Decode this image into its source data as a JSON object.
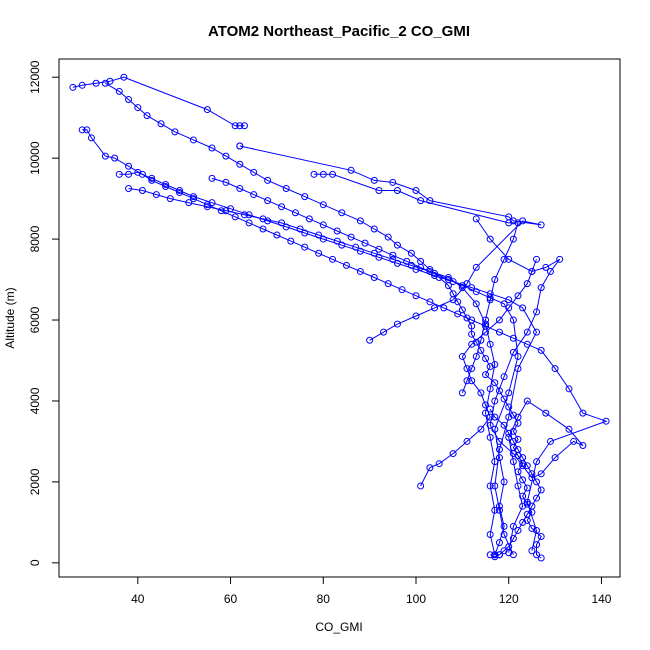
{
  "chart_data": {
    "type": "scatter",
    "title": "ATOM2 Northeast_Pacific_2 CO_GMI",
    "xlabel": "CO_GMI",
    "ylabel": "Altitude (m)",
    "xlim": [
      23,
      144
    ],
    "ylim": [
      -350,
      12450
    ],
    "x_ticks": [
      40,
      60,
      80,
      100,
      120,
      140
    ],
    "y_ticks": [
      0,
      2000,
      4000,
      6000,
      8000,
      10000,
      12000
    ],
    "color": "#0000ff",
    "grid": false,
    "legend": "none",
    "series": [
      {
        "connected": true,
        "marker": "open-circle",
        "x": [
          127,
          126,
          126,
          127,
          125,
          124,
          125,
          124,
          123,
          124,
          123,
          122,
          123,
          122,
          121,
          122,
          121,
          122,
          121,
          120,
          119,
          118,
          117,
          115,
          116,
          115,
          114,
          113,
          112,
          112,
          111,
          110,
          109,
          108,
          107,
          105,
          103,
          101,
          99,
          96,
          94,
          91,
          88,
          84,
          80,
          76,
          72,
          68,
          65,
          62,
          59,
          56,
          52,
          48,
          45,
          42,
          40,
          38,
          36,
          33
        ],
        "y": [
          120,
          200,
          450,
          650,
          850,
          1050,
          1250,
          1450,
          1650,
          1850,
          2050,
          2250,
          2450,
          2650,
          2850,
          3050,
          3250,
          3450,
          3650,
          3850,
          4050,
          4250,
          4450,
          4650,
          4850,
          5050,
          5250,
          5450,
          5650,
          5850,
          6050,
          6250,
          6450,
          6650,
          6850,
          7050,
          7250,
          7450,
          7650,
          7850,
          8050,
          8250,
          8450,
          8650,
          8850,
          9050,
          9250,
          9450,
          9650,
          9850,
          10050,
          10250,
          10450,
          10650,
          10850,
          11050,
          11250,
          11450,
          11650,
          11850
        ]
      },
      {
        "connected": true,
        "marker": "open-circle",
        "x": [
          26,
          28,
          31,
          34,
          37,
          55,
          61,
          62,
          63
        ],
        "y": [
          11750,
          11800,
          11850,
          11900,
          12000,
          11200,
          10800,
          10800,
          10800
        ]
      },
      {
        "connected": true,
        "marker": "open-circle",
        "x": [
          62,
          62,
          86,
          91,
          95,
          100,
          103,
          120,
          121,
          127,
          123,
          113,
          111,
          108,
          104,
          100,
          96,
          93,
          90
        ],
        "y": [
          10300,
          10300,
          9700,
          9450,
          9400,
          9200,
          8950,
          8550,
          8450,
          8350,
          8450,
          7300,
          6900,
          6500,
          6300,
          6100,
          5900,
          5700,
          5500
        ]
      },
      {
        "connected": true,
        "marker": "open-circle",
        "x": [
          28,
          29,
          30,
          33,
          35,
          38,
          41,
          43,
          46,
          49,
          52,
          55,
          58,
          61,
          64,
          67,
          70,
          73,
          76,
          79,
          82,
          85,
          88,
          91,
          94,
          97,
          100,
          103,
          106,
          109,
          112,
          115,
          118,
          121,
          124,
          127,
          130,
          133,
          136,
          141,
          129,
          126,
          124,
          126,
          125
        ],
        "y": [
          10700,
          10700,
          10500,
          10050,
          10000,
          9800,
          9600,
          9450,
          9300,
          9150,
          9000,
          8850,
          8700,
          8550,
          8400,
          8250,
          8100,
          7950,
          7800,
          7650,
          7500,
          7350,
          7200,
          7050,
          6900,
          6750,
          6600,
          6450,
          6300,
          6150,
          6000,
          5850,
          5700,
          5550,
          5400,
          5250,
          4800,
          4300,
          3700,
          3500,
          3000,
          2500,
          1500,
          800,
          300
        ]
      },
      {
        "connected": true,
        "marker": "open-circle",
        "x": [
          36,
          38,
          40,
          43,
          46,
          49,
          52,
          56,
          60,
          64,
          68,
          72,
          76,
          80,
          84,
          88,
          92,
          96,
          100,
          104,
          108,
          112,
          116,
          120,
          123,
          126,
          122,
          120,
          118,
          117,
          118,
          119,
          121
        ],
        "y": [
          9600,
          9600,
          9650,
          9500,
          9350,
          9200,
          9050,
          8900,
          8750,
          8600,
          8450,
          8300,
          8150,
          8000,
          7850,
          7700,
          7550,
          7400,
          7250,
          7100,
          6950,
          6800,
          6650,
          6500,
          6300,
          5700,
          4800,
          3600,
          2800,
          1900,
          1300,
          700,
          200
        ]
      },
      {
        "connected": true,
        "marker": "open-circle",
        "x": [
          38,
          41,
          44,
          47,
          51,
          55,
          59,
          63,
          67,
          71,
          75,
          79,
          83,
          87,
          91,
          95,
          99,
          103,
          107,
          110,
          113,
          115,
          116,
          117,
          116,
          115,
          116,
          117,
          116,
          117,
          116,
          117
        ],
        "y": [
          9250,
          9200,
          9100,
          9000,
          8900,
          8800,
          8700,
          8600,
          8500,
          8400,
          8250,
          8100,
          7950,
          7800,
          7650,
          7500,
          7350,
          7200,
          7050,
          6800,
          6400,
          5900,
          5400,
          4900,
          4300,
          3700,
          3100,
          2500,
          1900,
          1300,
          700,
          200
        ]
      },
      {
        "connected": true,
        "marker": "open-circle",
        "x": [
          56,
          59,
          62,
          65,
          68,
          71,
          74,
          77,
          80,
          83,
          86,
          89,
          92,
          95,
          98,
          101,
          104,
          107,
          110,
          113,
          116,
          119,
          121,
          122,
          120,
          117,
          118,
          119,
          118,
          119,
          118,
          117,
          118
        ],
        "y": [
          9500,
          9400,
          9250,
          9100,
          8950,
          8800,
          8650,
          8500,
          8350,
          8200,
          8050,
          7900,
          7750,
          7600,
          7450,
          7300,
          7150,
          7000,
          6850,
          6700,
          6550,
          6400,
          6000,
          5100,
          4200,
          3300,
          2600,
          2000,
          1400,
          900,
          500,
          200,
          200
        ]
      },
      {
        "connected": true,
        "marker": "open-circle",
        "x": [
          78,
          80,
          82,
          92,
          96,
          101,
          120,
          122,
          121,
          119,
          117,
          116,
          115,
          114,
          113,
          112,
          111,
          110
        ],
        "y": [
          9600,
          9600,
          9600,
          9200,
          9200,
          8950,
          8400,
          8400,
          8000,
          7500,
          7000,
          6500,
          6000,
          5500,
          5100,
          4800,
          4500,
          4200
        ]
      },
      {
        "connected": true,
        "marker": "open-circle",
        "x": [
          113,
          116,
          120,
          125,
          128,
          131,
          129,
          127,
          126,
          124,
          121,
          119,
          117,
          116,
          118,
          121,
          123,
          125,
          127,
          130,
          134,
          136,
          133,
          128,
          124,
          122,
          120,
          121,
          122,
          123,
          121,
          120
        ],
        "y": [
          8500,
          8000,
          7500,
          7200,
          7300,
          7500,
          7200,
          6800,
          6200,
          5700,
          5200,
          4600,
          4000,
          3400,
          3000,
          2700,
          2400,
          2100,
          2200,
          2600,
          3000,
          2900,
          3300,
          3700,
          4000,
          3600,
          3100,
          2500,
          1900,
          1400,
          900,
          250
        ]
      },
      {
        "connected": true,
        "marker": "open-circle",
        "x": [
          101,
          103,
          105,
          108,
          111,
          114,
          116,
          115,
          114,
          112,
          111,
          110,
          112,
          115,
          118,
          120,
          122,
          124,
          125,
          126
        ],
        "y": [
          1900,
          2350,
          2450,
          2700,
          3000,
          3300,
          3600,
          3900,
          4200,
          4500,
          4800,
          5100,
          5400,
          5700,
          6000,
          6300,
          6600,
          6900,
          7200,
          7500
        ]
      },
      {
        "connected": true,
        "marker": "open-circle",
        "x": [
          116,
          117,
          119,
          120,
          121,
          122,
          123,
          124,
          125,
          126,
          127,
          126,
          125,
          124,
          123,
          122,
          121,
          120,
          119,
          118,
          117,
          116
        ],
        "y": [
          3800,
          3600,
          3400,
          3200,
          3000,
          2800,
          2600,
          2400,
          2200,
          2000,
          1800,
          1600,
          1400,
          1200,
          1000,
          800,
          600,
          400,
          300,
          200,
          150,
          200
        ]
      }
    ]
  }
}
